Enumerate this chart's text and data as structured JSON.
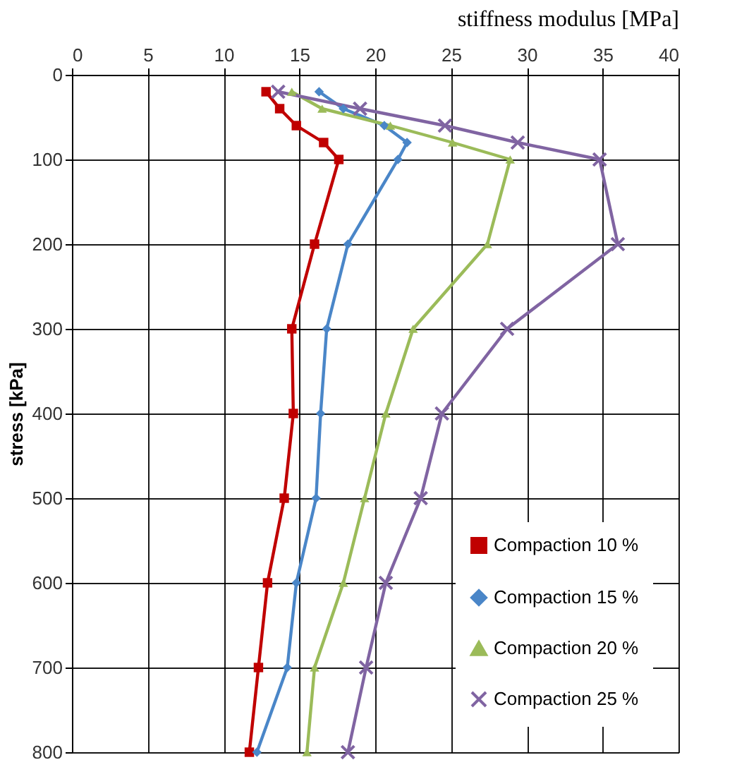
{
  "chart_data": {
    "type": "line",
    "xlabel": "stiffness modulus [MPa]",
    "ylabel": "stress  [kPa]",
    "xlim": [
      0,
      40
    ],
    "xticks": [
      0,
      5,
      10,
      15,
      20,
      25,
      30,
      35,
      40
    ],
    "ylim": [
      800,
      0
    ],
    "yticks": [
      0,
      100,
      200,
      300,
      400,
      500,
      600,
      700,
      800
    ],
    "grid": true,
    "legend": "bottom right",
    "series": [
      {
        "name": "Compaction 10 %",
        "color": "#c00000",
        "marker": "square",
        "x": [
          12.8,
          13.7,
          14.8,
          16.6,
          17.6,
          16.0,
          14.5,
          14.6,
          14.0,
          12.9,
          12.3,
          11.7
        ],
        "values": [
          20,
          40,
          60,
          80,
          100,
          200,
          300,
          400,
          500,
          600,
          700,
          800
        ]
      },
      {
        "name": "Compaction 15 %",
        "color": "#4a86c8",
        "marker": "diamond",
        "x": [
          16.3,
          17.9,
          20.6,
          22.1,
          21.5,
          18.2,
          16.8,
          16.4,
          16.1,
          14.8,
          14.2,
          12.2
        ],
        "values": [
          20,
          40,
          60,
          80,
          100,
          200,
          300,
          400,
          500,
          600,
          700,
          800
        ]
      },
      {
        "name": "Compaction 20 %",
        "color": "#9bbb59",
        "marker": "triangle",
        "x": [
          14.5,
          16.5,
          21.0,
          25.1,
          28.9,
          27.4,
          22.5,
          20.7,
          19.3,
          17.9,
          16.0,
          15.5
        ],
        "values": [
          20,
          40,
          60,
          80,
          100,
          200,
          300,
          400,
          500,
          600,
          700,
          800
        ]
      },
      {
        "name": "Compaction 25 %",
        "color": "#8064a2",
        "marker": "cross",
        "x": [
          13.6,
          19.0,
          24.6,
          29.4,
          34.8,
          36.0,
          28.7,
          24.4,
          23.0,
          20.7,
          19.4,
          18.2
        ],
        "values": [
          20,
          40,
          60,
          80,
          100,
          200,
          300,
          400,
          500,
          600,
          700,
          800
        ]
      }
    ]
  }
}
